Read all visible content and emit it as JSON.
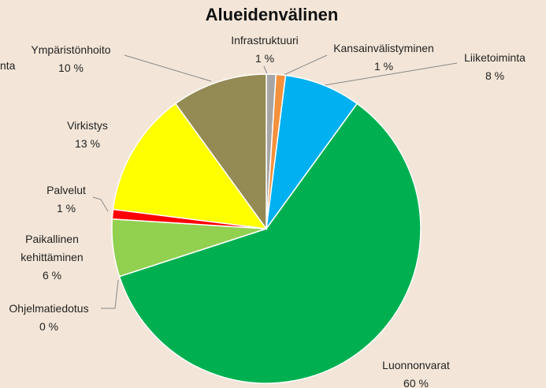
{
  "chart_data": {
    "type": "pie",
    "title": "Alueidenvälinen",
    "categories": [
      "Infrastruktuuri",
      "Kansainvälistyminen",
      "Liiketoiminta",
      "Luonnonvarat",
      "Ohjelmatiedotus",
      "Paikallinen kehittäminen",
      "Palvelut",
      "Virkistys",
      "Ympäristönhoito"
    ],
    "values": [
      1,
      1,
      8,
      60,
      0,
      6,
      1,
      13,
      10
    ],
    "value_labels": [
      "1 %",
      "1 %",
      "8 %",
      "60 %",
      "0 %",
      "6 %",
      "1 %",
      "13 %",
      "10 %"
    ],
    "colors": [
      "#a6a6a6",
      "#f4913c",
      "#00b0f0",
      "#00b050",
      "#7f7f7f",
      "#92d050",
      "#ff0000",
      "#ffff00",
      "#948a54"
    ],
    "annotations": [
      "nta"
    ]
  }
}
